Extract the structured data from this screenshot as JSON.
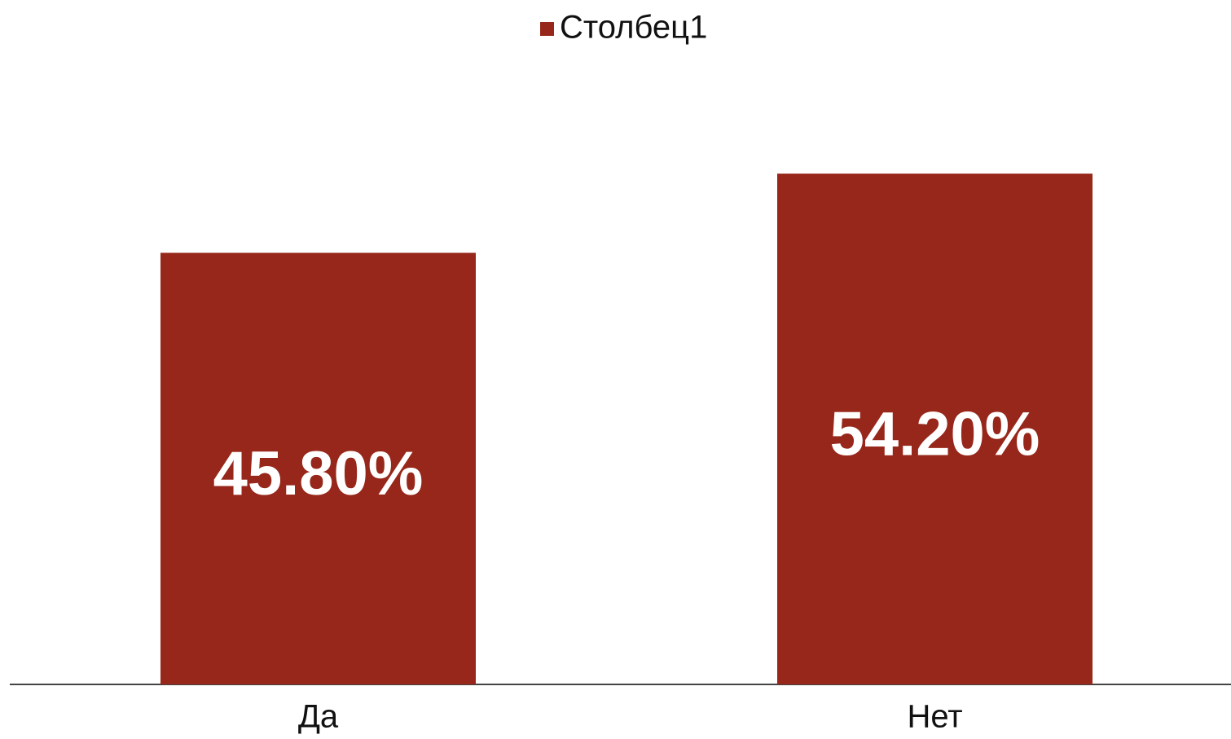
{
  "chart_data": {
    "type": "bar",
    "categories": [
      "Да",
      "Нет"
    ],
    "series": [
      {
        "name": "Столбец1",
        "color": "#97271a",
        "values": [
          45.8,
          54.2
        ],
        "value_labels": [
          "45.80%",
          "54.20%"
        ]
      }
    ],
    "ylim": [
      0,
      60
    ],
    "legend": "top"
  }
}
